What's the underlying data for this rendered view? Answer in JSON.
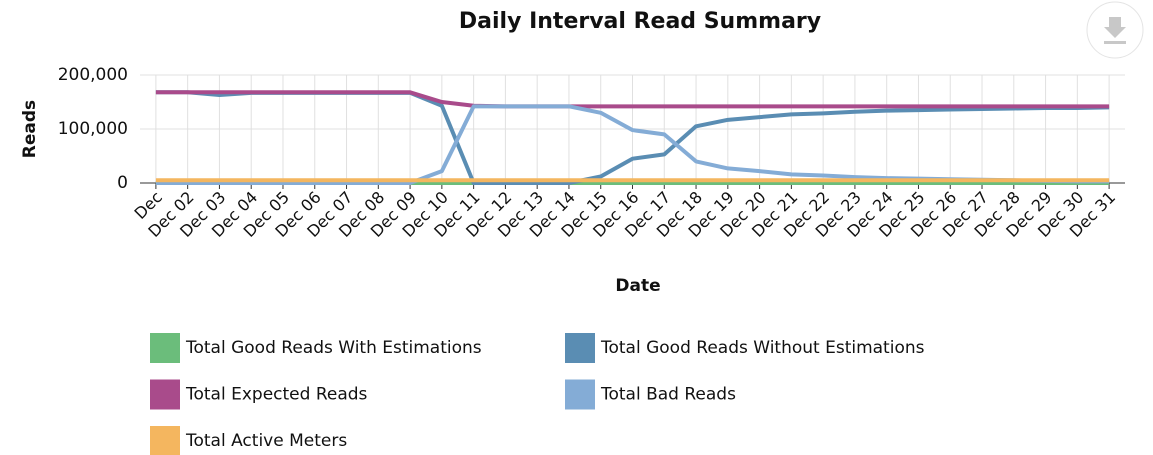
{
  "chart_data": {
    "type": "line",
    "title": "Daily Interval Read Summary",
    "x_label": "Date",
    "y_label": "Reads",
    "categories": [
      "Dec",
      "Dec 02",
      "Dec 03",
      "Dec 04",
      "Dec 05",
      "Dec 06",
      "Dec 07",
      "Dec 08",
      "Dec 09",
      "Dec 10",
      "Dec 11",
      "Dec 12",
      "Dec 13",
      "Dec 14",
      "Dec 15",
      "Dec 16",
      "Dec 17",
      "Dec 18",
      "Dec 19",
      "Dec 20",
      "Dec 21",
      "Dec 22",
      "Dec 23",
      "Dec 24",
      "Dec 25",
      "Dec 26",
      "Dec 27",
      "Dec 28",
      "Dec 29",
      "Dec 30",
      "Dec 31"
    ],
    "series": [
      {
        "name": "Total Good Reads With Estimations",
        "color": "#6bbd7b",
        "values": [
          0,
          0,
          0,
          0,
          0,
          0,
          0,
          0,
          0,
          0,
          0,
          0,
          0,
          0,
          0,
          0,
          0,
          0,
          0,
          0,
          0,
          0,
          0,
          0,
          0,
          0,
          0,
          0,
          0,
          0,
          0
        ]
      },
      {
        "name": "Total Good Reads Without Estimations",
        "color": "#5a8db3",
        "values": [
          168000,
          168000,
          163000,
          167000,
          167000,
          167000,
          167000,
          167000,
          167000,
          143000,
          0,
          0,
          0,
          0,
          12000,
          45000,
          53000,
          105000,
          117000,
          122000,
          127000,
          129000,
          132000,
          134000,
          135000,
          136000,
          137000,
          138000,
          139000,
          139000,
          140000
        ]
      },
      {
        "name": "Total Expected Reads",
        "color": "#a94b8b",
        "values": [
          168000,
          168000,
          168000,
          168000,
          168000,
          168000,
          168000,
          168000,
          168000,
          150000,
          143000,
          142000,
          142000,
          142000,
          142000,
          142000,
          142000,
          142000,
          142000,
          142000,
          142000,
          142000,
          142000,
          142000,
          142000,
          142000,
          142000,
          142000,
          142000,
          142000,
          142000
        ]
      },
      {
        "name": "Total Bad Reads",
        "color": "#84acd6",
        "values": [
          0,
          0,
          0,
          0,
          0,
          0,
          0,
          0,
          0,
          22000,
          142000,
          142000,
          142000,
          142000,
          130000,
          98000,
          90000,
          40000,
          27000,
          22000,
          16000,
          14000,
          11000,
          9000,
          8000,
          7000,
          6000,
          5000,
          4000,
          3000,
          3000
        ]
      },
      {
        "name": "Total Active Meters",
        "color": "#f4b65f",
        "values": [
          5000,
          5000,
          5000,
          5000,
          5000,
          5000,
          5000,
          5000,
          5000,
          5000,
          5000,
          5000,
          5000,
          5000,
          5000,
          5000,
          5000,
          5000,
          5000,
          5000,
          5000,
          5000,
          5000,
          5000,
          5000,
          5000,
          5000,
          5000,
          5000,
          5000,
          5000
        ]
      }
    ],
    "ylim": [
      0,
      200000
    ],
    "yticks": [
      0,
      {
        "value": 100000,
        "label": "100,000"
      },
      {
        "value": 200000,
        "label": "200,000"
      }
    ],
    "grid": true
  }
}
